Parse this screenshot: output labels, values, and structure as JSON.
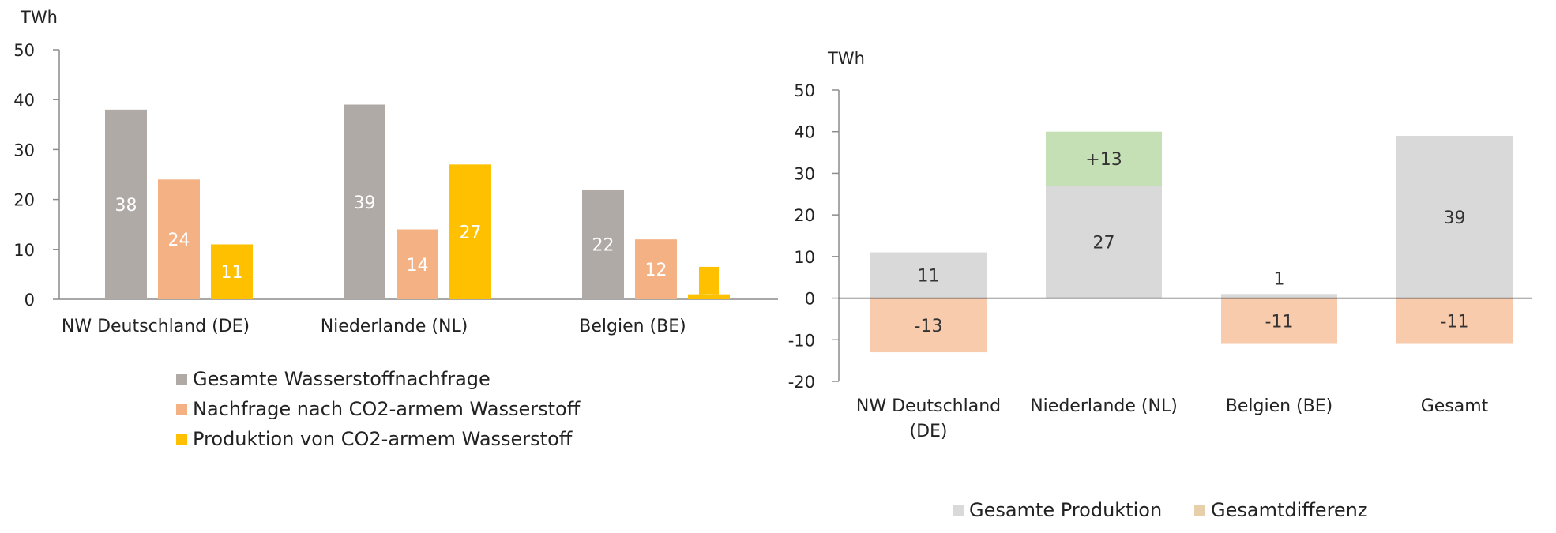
{
  "chart_data": [
    {
      "type": "bar",
      "unit": "TWh",
      "ylim": [
        0,
        50
      ],
      "yticks": [
        0,
        10,
        20,
        30,
        40,
        50
      ],
      "categories": [
        "NW Deutschland (DE)",
        "Niederlande (NL)",
        "Belgien (BE)"
      ],
      "series": [
        {
          "name": "Gesamte Wasserstoffnachfrage",
          "color": "#b0aaa7",
          "values": [
            38,
            39,
            22
          ],
          "labels": [
            "38",
            "39",
            "22"
          ]
        },
        {
          "name": "Nachfrage nach CO2-armem Wasserstoff",
          "color": "#f4b183",
          "values": [
            24,
            14,
            12
          ],
          "labels": [
            "24",
            "14",
            "12"
          ]
        },
        {
          "name": "Produktion von CO2-armem Wasserstoff",
          "color": "#ffc000",
          "values": [
            11,
            27,
            1
          ],
          "labels": [
            "11",
            "27",
            "1"
          ]
        }
      ],
      "annotations": [
        {
          "category": "Belgien (BE)",
          "from": 1,
          "to": 6.5,
          "color": "#ffc000"
        }
      ],
      "legend": "bottom"
    },
    {
      "type": "bar",
      "stacked": true,
      "unit": "TWh",
      "ylim": [
        -20,
        50
      ],
      "yticks": [
        -20,
        -10,
        0,
        10,
        20,
        30,
        40,
        50
      ],
      "categories": [
        "NW Deutschland (DE)",
        "Niederlande (NL)",
        "Belgien (BE)",
        "Gesamt"
      ],
      "category_lines": [
        [
          "NW Deutschland",
          "(DE)"
        ],
        [
          "Niederlande (NL)"
        ],
        [
          "Belgien (BE)"
        ],
        [
          "Gesamt"
        ]
      ],
      "series": [
        {
          "name": "Gesamte Produktion",
          "color": "#d9d9d9",
          "legend_color": "#d9d9d9",
          "values": [
            11,
            27,
            1,
            39
          ],
          "labels": [
            "11",
            "27",
            "1",
            "39"
          ]
        },
        {
          "name": "Gesamtdifferenz",
          "color": "#f8cbad",
          "positive_color": "#c5e0b4",
          "legend_color": "#e6cfaa",
          "values": [
            -13,
            13,
            -11,
            -11
          ],
          "labels": [
            "-13",
            "+13",
            "-11",
            "-11"
          ]
        }
      ],
      "legend": "bottom"
    }
  ]
}
